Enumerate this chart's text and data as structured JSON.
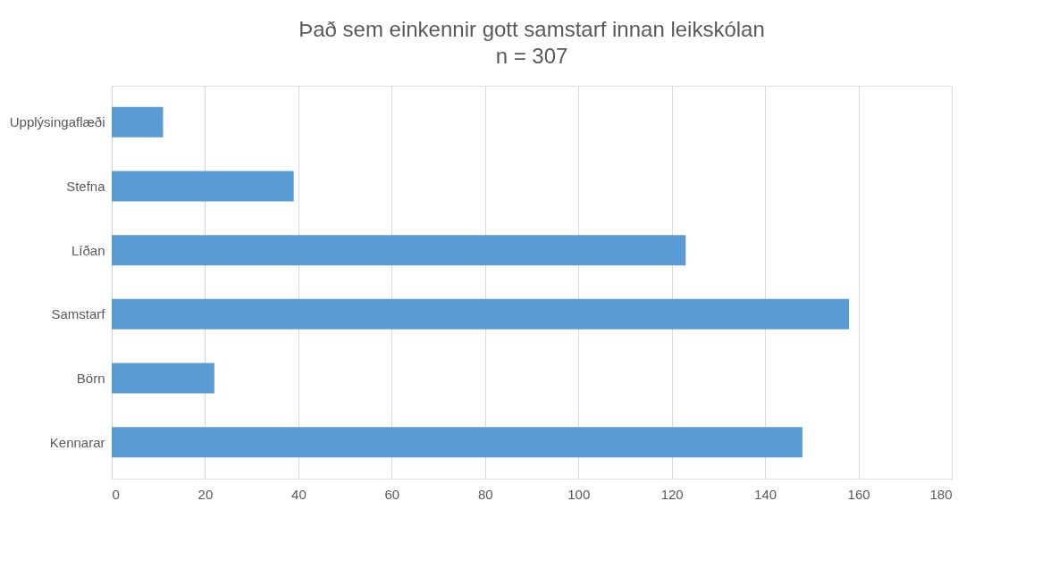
{
  "chart_data": {
    "type": "bar",
    "orientation": "horizontal",
    "title": "Það sem einkennir gott samstarf innan leikskólan",
    "subtitle": "n = 307",
    "categories": [
      "Upplýsingaflæði",
      "Stefna",
      "Líðan",
      "Samstarf",
      "Börn",
      "Kennarar"
    ],
    "values": [
      11,
      39,
      123,
      158,
      22,
      148
    ],
    "color": "#5b9bd5",
    "xlim": [
      0,
      180
    ],
    "xticks": [
      0,
      20,
      40,
      60,
      80,
      100,
      120,
      140,
      160,
      180
    ],
    "grid": "x"
  }
}
